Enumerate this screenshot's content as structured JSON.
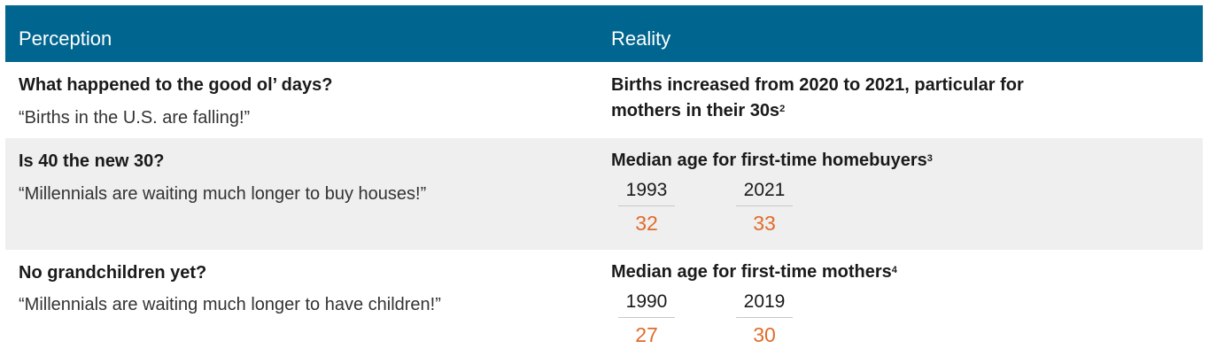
{
  "header": {
    "perception": "Perception",
    "reality": "Reality"
  },
  "rows": [
    {
      "question": "What happened to the good ol’ days?",
      "quote": "“Births in the U.S. are falling!”",
      "reality_line1": "Births increased from 2020 to 2021, particular for",
      "reality_line2": "mothers in their 30s",
      "footnote": "2"
    },
    {
      "question": "Is 40 the new 30?",
      "quote": "“Millennials are waiting much longer to buy houses!”",
      "reality_title": "Median age for first-time homebuyers",
      "footnote": "3",
      "stats": [
        {
          "year": "1993",
          "value": "32"
        },
        {
          "year": "2021",
          "value": "33"
        }
      ]
    },
    {
      "question": "No grandchildren yet?",
      "quote": "“Millennials are waiting much longer to have children!”",
      "reality_title": "Median age for first-time mothers",
      "footnote": "4",
      "stats": [
        {
          "year": "1990",
          "value": "27"
        },
        {
          "year": "2019",
          "value": "30"
        }
      ]
    }
  ],
  "colors": {
    "header_bg": "#00658f",
    "row_shade": "#efefef",
    "value_accent": "#e06c2b"
  }
}
